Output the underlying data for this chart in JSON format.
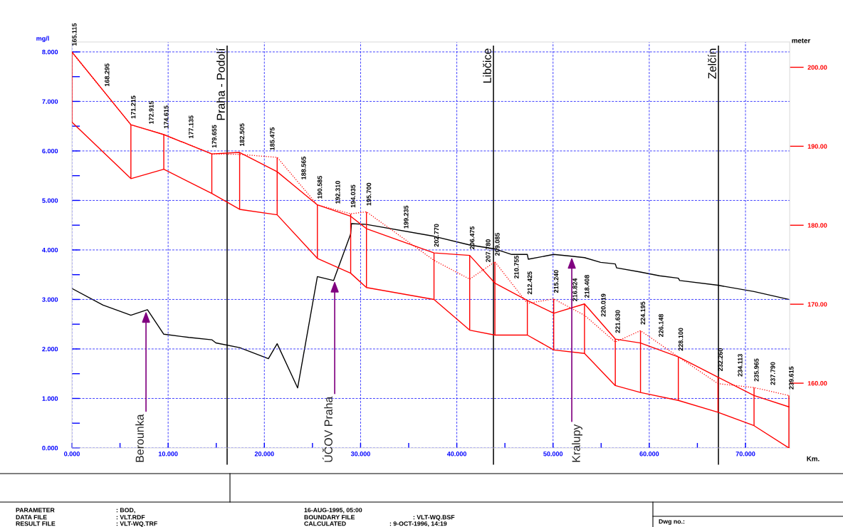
{
  "chart_data": {
    "type": "line",
    "xlabel": "Km.",
    "ylabel": "mg/l",
    "y2label": "meter",
    "x": [
      0,
      6.13,
      9.55,
      14.54,
      17.43,
      21.33,
      25.51,
      28.97,
      30.61,
      37.63,
      41.34,
      43.96,
      47.33,
      50.07,
      53.27,
      56.47,
      59.09,
      63.02,
      67.14,
      70.89,
      74.51
    ],
    "series": [
      {
        "color": "#ff0000",
        "values": [
          8.0,
          6.53,
          6.33,
          5.94,
          5.97,
          5.58,
          4.91,
          4.68,
          4.43,
          3.94,
          3.89,
          3.33,
          2.98,
          2.72,
          2.91,
          2.2,
          2.12,
          1.84,
          1.43,
          1.06,
          0.83
        ],
        "errors": [
          [
            6.58,
            8.0
          ],
          [
            5.44,
            6.53
          ],
          [
            5.63,
            6.33
          ],
          [
            5.14,
            5.94
          ],
          [
            4.82,
            5.97
          ],
          [
            4.71,
            5.87
          ],
          [
            3.83,
            4.91
          ],
          [
            3.53,
            4.73
          ],
          [
            3.24,
            4.77
          ],
          [
            3.0,
            3.94
          ],
          [
            2.38,
            3.89
          ],
          [
            2.28,
            3.76
          ],
          [
            2.28,
            2.98
          ],
          [
            1.98,
            3.01
          ],
          [
            1.91,
            2.91
          ],
          [
            1.26,
            2.2
          ],
          [
            1.12,
            2.37
          ],
          [
            0.96,
            1.84
          ],
          [
            0.72,
            1.43
          ],
          [
            0.45,
            1.22
          ],
          [
            0.0,
            1.06
          ]
        ]
      },
      {
        "color": "#ff0000",
        "values": [
          6.58,
          5.44,
          5.63,
          5.14,
          4.82,
          4.71,
          3.83,
          3.53,
          3.24,
          3.0,
          2.38,
          2.28,
          2.28,
          1.98,
          1.91,
          1.26,
          1.12,
          0.96,
          0.72,
          0.45,
          0.0
        ]
      },
      {
        "color": "#ff0000",
        "line_style": "dotted",
        "values": [
          7.99,
          6.53,
          6.33,
          5.94,
          5.93,
          5.87,
          4.91,
          4.73,
          4.77,
          3.79,
          3.41,
          3.76,
          2.92,
          3.01,
          2.68,
          2.14,
          2.37,
          1.84,
          1.3,
          1.22,
          1.06
        ]
      },
      {
        "color": "#000000",
        "axis": "y2",
        "x": [
          0,
          3.23,
          6.13,
          7.85,
          9.55,
          12.14,
          14.54,
          14.96,
          17.43,
          20.42,
          21.33,
          23.46,
          25.51,
          27.19,
          28.97,
          29.05,
          30.61,
          37.63,
          41.34,
          43.96,
          45.71,
          47.33,
          47.43,
          50.07,
          51.74,
          53.27,
          54.94,
          56.47,
          56.61,
          58.98,
          61.07,
          63.02,
          63.16,
          67.14,
          70.89,
          74.51
        ],
        "values": [
          172.0,
          169.9,
          168.6,
          169.3,
          166.2,
          165.8,
          165.5,
          165.1,
          164.5,
          163.1,
          165.0,
          159.4,
          173.5,
          173.0,
          178.9,
          180.2,
          180.1,
          178.6,
          177.5,
          177.0,
          176.3,
          176.3,
          175.7,
          176.3,
          176.1,
          175.9,
          175.3,
          175.1,
          174.6,
          174.1,
          173.6,
          173.3,
          173.0,
          172.4,
          171.6,
          170.6
        ]
      }
    ],
    "xlim": [
      0,
      74.6
    ],
    "xticks": [
      {
        "value": 0,
        "label": "0.000"
      },
      {
        "value": 5,
        "label": null
      },
      {
        "value": 10,
        "label": "10.000"
      },
      {
        "value": 15,
        "label": null
      },
      {
        "value": 20,
        "label": "20.000"
      },
      {
        "value": 25,
        "label": null
      },
      {
        "value": 30,
        "label": "30.000"
      },
      {
        "value": 35,
        "label": null
      },
      {
        "value": 40,
        "label": "40.000"
      },
      {
        "value": 45,
        "label": null
      },
      {
        "value": 50,
        "label": "50.000"
      },
      {
        "value": 55,
        "label": null
      },
      {
        "value": 60,
        "label": "60.000"
      },
      {
        "value": 65,
        "label": null
      },
      {
        "value": 70,
        "label": "70.000"
      }
    ],
    "ylim": [
      0,
      8.2
    ],
    "yticks": [
      {
        "value": 0,
        "label": "0.000"
      },
      {
        "value": 0.5,
        "label": null
      },
      {
        "value": 1,
        "label": "1.000"
      },
      {
        "value": 1.5,
        "label": null
      },
      {
        "value": 2,
        "label": "2.000"
      },
      {
        "value": 2.5,
        "label": null
      },
      {
        "value": 3,
        "label": "3.000"
      },
      {
        "value": 3.5,
        "label": null
      },
      {
        "value": 4,
        "label": "4.000"
      },
      {
        "value": 4.5,
        "label": null
      },
      {
        "value": 5,
        "label": "5.000"
      },
      {
        "value": 5.5,
        "label": null
      },
      {
        "value": 6,
        "label": "6.000"
      },
      {
        "value": 6.5,
        "label": null
      },
      {
        "value": 7,
        "label": "7.000"
      },
      {
        "value": 7.5,
        "label": null
      },
      {
        "value": 8,
        "label": "8.000"
      }
    ],
    "y2lim": [
      151.8,
      203.2
    ],
    "y2ticks": [
      {
        "value": 160,
        "label": "160.00"
      },
      {
        "value": 170,
        "label": "170.00"
      },
      {
        "value": 180,
        "label": "180.00"
      },
      {
        "value": 190,
        "label": "190.00"
      },
      {
        "value": 200,
        "label": "200.00"
      }
    ],
    "grid": true,
    "ref_lines": [
      {
        "axis": "x",
        "value": 16.13,
        "label": "Praha - Podolí",
        "color": "#000000"
      },
      {
        "axis": "x",
        "value": 43.81,
        "label": "Libčice",
        "color": "#000000"
      },
      {
        "axis": "x",
        "value": 67.19,
        "label": "Zelčín",
        "color": "#000000"
      }
    ],
    "annotations": [
      {
        "text": "Berounka",
        "x": 7.7,
        "y": 2.76
      },
      {
        "text": "ÚČOV Praha",
        "x": 27.31,
        "y": 3.37
      },
      {
        "text": "Kralupy",
        "x": 51.95,
        "y": 3.85
      },
      {
        "text": "165.115",
        "x": 0,
        "y": 8.0
      },
      {
        "text": "168.295",
        "x": 3.4,
        "y": 7.18
      },
      {
        "text": "171.215",
        "x": 6.13,
        "y": 6.53
      },
      {
        "text": "172.915",
        "x": 8.0,
        "y": 6.42
      },
      {
        "text": "174.615",
        "x": 9.55,
        "y": 6.33
      },
      {
        "text": "177.135",
        "x": 12.13,
        "y": 6.13
      },
      {
        "text": "179.655",
        "x": 14.54,
        "y": 5.94
      },
      {
        "text": "182.505",
        "x": 17.43,
        "y": 5.97
      },
      {
        "text": "185.475",
        "x": 20.57,
        "y": 5.89
      },
      {
        "text": "188.565",
        "x": 23.83,
        "y": 5.3
      },
      {
        "text": "190.585",
        "x": 25.51,
        "y": 4.91
      },
      {
        "text": "192.310",
        "x": 27.38,
        "y": 4.81
      },
      {
        "text": "194.035",
        "x": 28.97,
        "y": 4.73
      },
      {
        "text": "195.700",
        "x": 30.61,
        "y": 4.77
      },
      {
        "text": "199.235",
        "x": 34.48,
        "y": 4.31
      },
      {
        "text": "202.770",
        "x": 37.63,
        "y": 3.94
      },
      {
        "text": "206.475",
        "x": 41.34,
        "y": 3.89
      },
      {
        "text": "207.780",
        "x": 43.0,
        "y": 3.63
      },
      {
        "text": "209.085",
        "x": 43.96,
        "y": 3.76
      },
      {
        "text": "210.755",
        "x": 45.95,
        "y": 3.3
      },
      {
        "text": "212.425",
        "x": 47.33,
        "y": 2.98
      },
      {
        "text": "215.240",
        "x": 50.07,
        "y": 3.01
      },
      {
        "text": "216.824",
        "x": 52.02,
        "y": 2.84
      },
      {
        "text": "218.408",
        "x": 53.27,
        "y": 2.91
      },
      {
        "text": "220.019",
        "x": 54.98,
        "y": 2.53
      },
      {
        "text": "221.630",
        "x": 56.47,
        "y": 2.2
      },
      {
        "text": "224.195",
        "x": 59.09,
        "y": 2.37
      },
      {
        "text": "226.148",
        "x": 60.97,
        "y": 2.12
      },
      {
        "text": "228.100",
        "x": 63.02,
        "y": 1.84
      },
      {
        "text": "232.260",
        "x": 67.14,
        "y": 1.43
      },
      {
        "text": "234.113",
        "x": 69.19,
        "y": 1.32
      },
      {
        "text": "235.965",
        "x": 70.89,
        "y": 1.22
      },
      {
        "text": "237.790",
        "x": 72.59,
        "y": 1.15
      },
      {
        "text": "239.615",
        "x": 74.51,
        "y": 1.06
      },
      "PARAMETER",
      "DATA FILE",
      "RESULT FILE",
      ": BOD,",
      ": VLT.RDF",
      ": VLT-WQ.TRF",
      "16-AUG-1995, 05:00",
      "BOUNDARY FILE",
      "CALCULATED",
      ": VLT-WQ.BSF",
      ": 9-OCT-1996, 14:19",
      "Dwg no.:"
    ]
  }
}
